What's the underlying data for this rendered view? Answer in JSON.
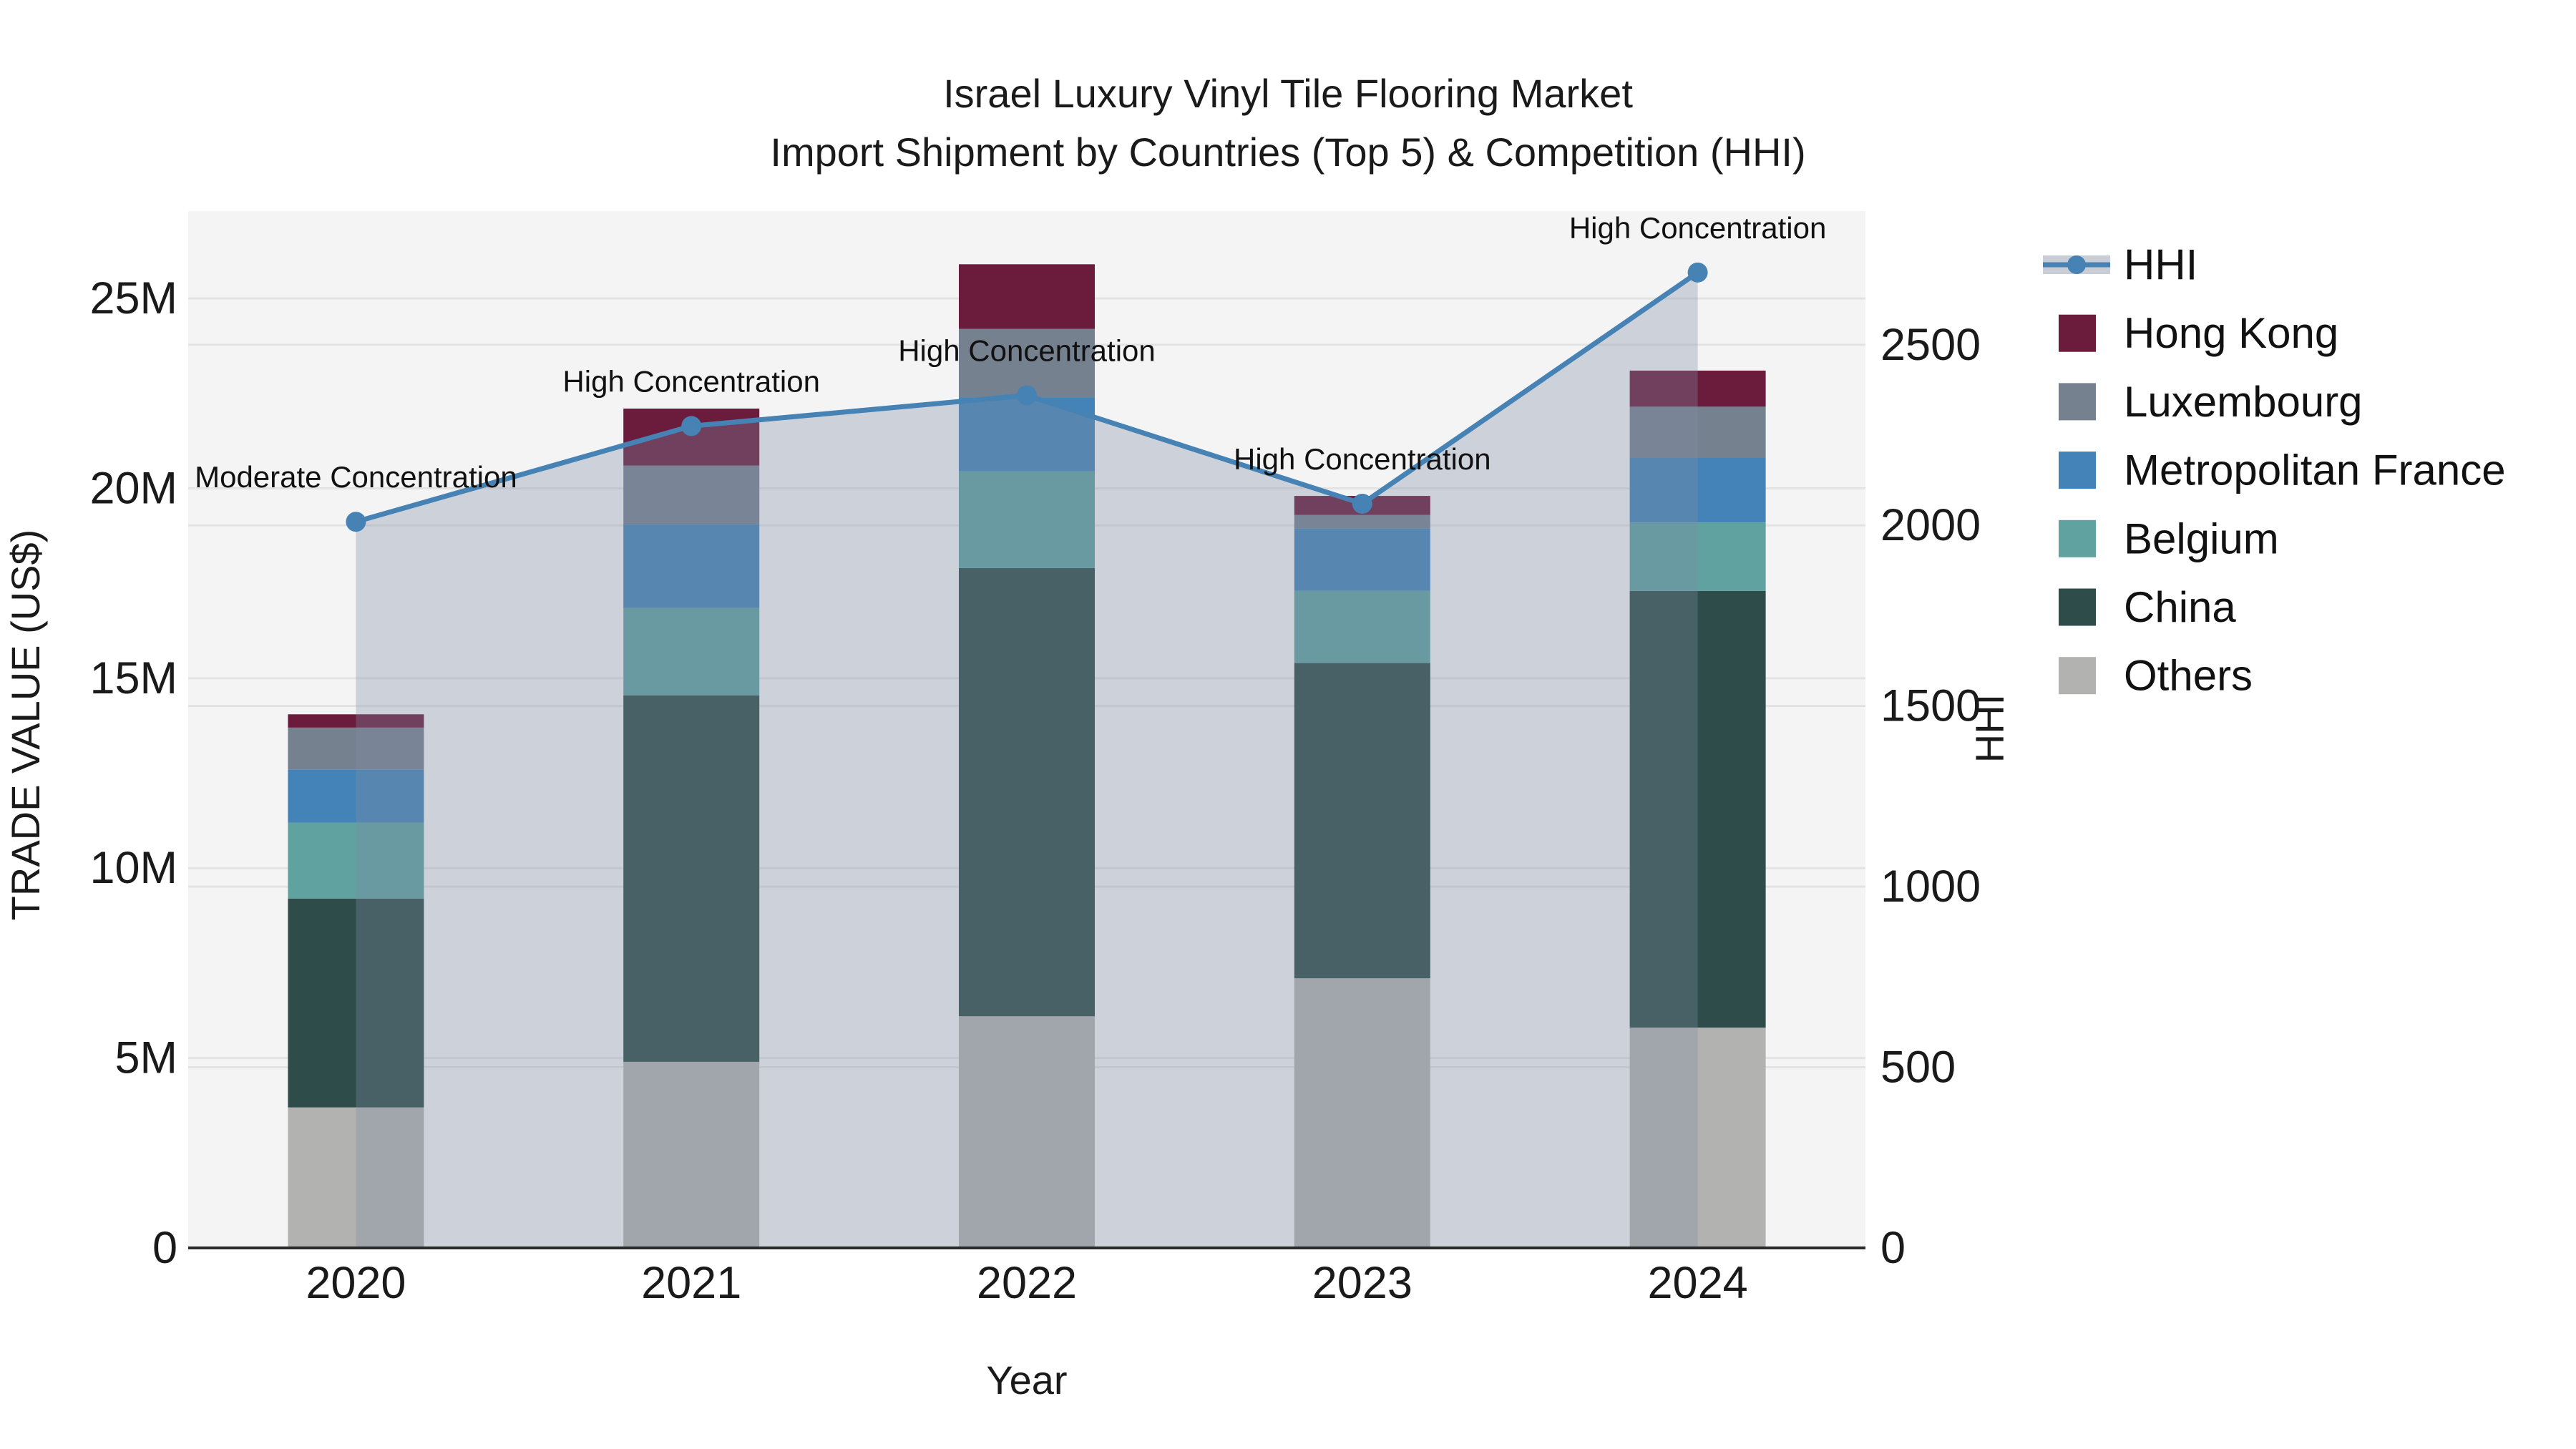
{
  "title": {
    "line1": "Israel Luxury Vinyl Tile Flooring Market",
    "line2": "Import Shipment by Countries (Top 5) & Competition (HHI)"
  },
  "axes": {
    "left": {
      "title": "TRADE VALUE (US$)",
      "tick_labels": [
        "0",
        "5M",
        "10M",
        "15M",
        "20M",
        "25M"
      ],
      "tick_values": [
        0,
        5,
        10,
        15,
        20,
        25
      ]
    },
    "right": {
      "title": "HHI",
      "tick_labels": [
        "0",
        "500",
        "1000",
        "1500",
        "2000",
        "2500"
      ],
      "tick_values": [
        0,
        500,
        1000,
        1500,
        2000,
        2500
      ]
    },
    "x": {
      "title": "Year",
      "tick_labels": [
        "2020",
        "2021",
        "2022",
        "2023",
        "2024"
      ]
    }
  },
  "legend": {
    "items": [
      {
        "label": "HHI",
        "type": "line",
        "color": "#4682b4",
        "band_color": "#c9ced6"
      },
      {
        "label": "Hong Kong",
        "type": "swatch",
        "color": "#6b1c3d"
      },
      {
        "label": "Luxembourg",
        "type": "swatch",
        "color": "#76818f"
      },
      {
        "label": "Metropolitan France",
        "type": "swatch",
        "color": "#4483b8"
      },
      {
        "label": "Belgium",
        "type": "swatch",
        "color": "#60a2a0"
      },
      {
        "label": "China",
        "type": "swatch",
        "color": "#2e4c4a"
      },
      {
        "label": "Others",
        "type": "swatch",
        "color": "#b2b3b1"
      }
    ]
  },
  "annotations": [
    {
      "year": "2020",
      "text": "Moderate Concentration"
    },
    {
      "year": "2021",
      "text": "High Concentration"
    },
    {
      "year": "2022",
      "text": "High Concentration"
    },
    {
      "year": "2023",
      "text": "High Concentration"
    },
    {
      "year": "2024",
      "text": "High Concentration"
    }
  ],
  "chart_data": {
    "type": "bar+line",
    "title": "Israel Luxury Vinyl Tile Flooring Market — Import Shipment by Countries (Top 5) & Competition (HHI)",
    "categories": [
      "2020",
      "2021",
      "2022",
      "2023",
      "2024"
    ],
    "bar_unit": "million US$ (trade value)",
    "series": [
      {
        "name": "Others",
        "color": "#b2b3b1",
        "values": [
          3.7,
          4.9,
          6.1,
          7.1,
          5.8
        ]
      },
      {
        "name": "China",
        "color": "#2e4c4a",
        "values": [
          5.5,
          9.65,
          11.8,
          8.3,
          11.5
        ]
      },
      {
        "name": "Belgium",
        "color": "#60a2a0",
        "values": [
          2.0,
          2.3,
          2.55,
          1.9,
          1.8
        ]
      },
      {
        "name": "Metropolitan France",
        "color": "#4483b8",
        "values": [
          1.4,
          2.2,
          1.95,
          1.65,
          1.7
        ]
      },
      {
        "name": "Luxembourg",
        "color": "#76818f",
        "values": [
          1.1,
          1.55,
          1.8,
          0.35,
          1.35
        ]
      },
      {
        "name": "Hong Kong",
        "color": "#6b1c3d",
        "values": [
          0.35,
          1.5,
          1.7,
          0.5,
          0.95
        ]
      }
    ],
    "bar_totals": [
      14.05,
      22.1,
      25.9,
      19.8,
      23.1
    ],
    "line": {
      "name": "HHI",
      "color": "#4682b4",
      "area_fill": "rgba(126,141,165,0.33)",
      "values": [
        2010,
        2275,
        2360,
        2060,
        2700
      ]
    },
    "xlabel": "Year",
    "ylabel": "TRADE VALUE (US$)",
    "y2label": "HHI",
    "ylim": [
      0,
      27.3
    ],
    "y2lim": [
      0,
      2870
    ],
    "grid": true,
    "legend_position": "right",
    "plot_bg": "#f4f4f4",
    "grid_color": "#e3e3e3",
    "spine_color": "#2b2b2b"
  }
}
